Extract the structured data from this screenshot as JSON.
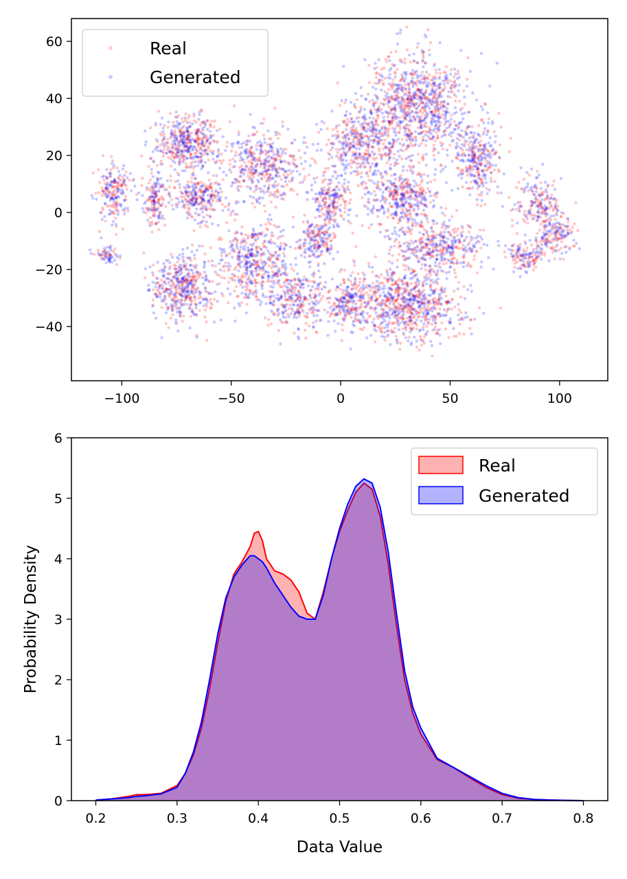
{
  "chart_data": [
    {
      "type": "scatter",
      "title": "",
      "xlabel": "",
      "ylabel": "",
      "xlim": [
        -123,
        122
      ],
      "ylim": [
        -59,
        68
      ],
      "xticks": [
        -100,
        -50,
        0,
        50,
        100
      ],
      "xtick_labels": [
        "−100",
        "−50",
        "0",
        "50",
        "100"
      ],
      "yticks": [
        -40,
        -20,
        0,
        20,
        40,
        60
      ],
      "ytick_labels": [
        "−40",
        "−20",
        "0",
        "20",
        "40",
        "60"
      ],
      "grid": false,
      "legend_position": "top-left",
      "series": [
        {
          "name": "Real",
          "color": "#ff0000",
          "alpha": 0.2
        },
        {
          "name": "Generated",
          "color": "#0000ff",
          "alpha": 0.2
        }
      ],
      "clusters": [
        {
          "cx": 35,
          "cy": 38,
          "rx": 26,
          "ry": 20,
          "n": 900
        },
        {
          "cx": 10,
          "cy": 24,
          "rx": 20,
          "ry": 15,
          "n": 450
        },
        {
          "cx": 28,
          "cy": 5,
          "rx": 18,
          "ry": 12,
          "n": 400
        },
        {
          "cx": 62,
          "cy": 18,
          "rx": 12,
          "ry": 14,
          "n": 300
        },
        {
          "cx": -70,
          "cy": 24,
          "rx": 15,
          "ry": 11,
          "n": 450
        },
        {
          "cx": -65,
          "cy": 5,
          "rx": 12,
          "ry": 8,
          "n": 250
        },
        {
          "cx": -35,
          "cy": 16,
          "rx": 20,
          "ry": 14,
          "n": 450
        },
        {
          "cx": -5,
          "cy": 4,
          "rx": 10,
          "ry": 10,
          "n": 200
        },
        {
          "cx": -103,
          "cy": 7,
          "rx": 8,
          "ry": 12,
          "n": 200
        },
        {
          "cx": -85,
          "cy": 5,
          "rx": 6,
          "ry": 12,
          "n": 150
        },
        {
          "cx": -107,
          "cy": -15,
          "rx": 6,
          "ry": 3,
          "n": 60
        },
        {
          "cx": -72,
          "cy": -26,
          "rx": 16,
          "ry": 13,
          "n": 450
        },
        {
          "cx": -40,
          "cy": -18,
          "rx": 18,
          "ry": 16,
          "n": 450
        },
        {
          "cx": -10,
          "cy": -10,
          "rx": 10,
          "ry": 8,
          "n": 180
        },
        {
          "cx": -20,
          "cy": -30,
          "rx": 16,
          "ry": 12,
          "n": 300
        },
        {
          "cx": 30,
          "cy": -32,
          "rx": 28,
          "ry": 14,
          "n": 800
        },
        {
          "cx": 45,
          "cy": -12,
          "rx": 22,
          "ry": 10,
          "n": 400
        },
        {
          "cx": 3,
          "cy": -32,
          "rx": 10,
          "ry": 12,
          "n": 200
        },
        {
          "cx": 90,
          "cy": 3,
          "rx": 14,
          "ry": 10,
          "n": 200
        },
        {
          "cx": 98,
          "cy": -8,
          "rx": 10,
          "ry": 8,
          "n": 150
        },
        {
          "cx": 85,
          "cy": -15,
          "rx": 8,
          "ry": 6,
          "n": 120
        }
      ]
    },
    {
      "type": "area",
      "title": "",
      "xlabel": "Data Value",
      "ylabel": "Probability Density",
      "xlim": [
        0.17,
        0.83
      ],
      "ylim": [
        0,
        6
      ],
      "xticks": [
        0.2,
        0.3,
        0.4,
        0.5,
        0.6,
        0.7,
        0.8
      ],
      "xtick_labels": [
        "0.2",
        "0.3",
        "0.4",
        "0.5",
        "0.6",
        "0.7",
        "0.8"
      ],
      "yticks": [
        0,
        1,
        2,
        3,
        4,
        5,
        6
      ],
      "ytick_labels": [
        "0",
        "1",
        "2",
        "3",
        "4",
        "5",
        "6"
      ],
      "grid": false,
      "legend_position": "top-right",
      "series": [
        {
          "name": "Real",
          "color": "#ff0000",
          "fill": "#ff0000",
          "fill_alpha": 0.3,
          "x": [
            0.2,
            0.22,
            0.24,
            0.25,
            0.26,
            0.28,
            0.3,
            0.31,
            0.32,
            0.33,
            0.34,
            0.35,
            0.36,
            0.37,
            0.38,
            0.39,
            0.395,
            0.4,
            0.405,
            0.41,
            0.42,
            0.43,
            0.44,
            0.45,
            0.46,
            0.47,
            0.48,
            0.49,
            0.5,
            0.51,
            0.52,
            0.53,
            0.54,
            0.55,
            0.56,
            0.57,
            0.58,
            0.59,
            0.6,
            0.62,
            0.64,
            0.66,
            0.68,
            0.7,
            0.72,
            0.74,
            0.76,
            0.78,
            0.8
          ],
          "y": [
            0.01,
            0.03,
            0.07,
            0.1,
            0.1,
            0.12,
            0.25,
            0.45,
            0.75,
            1.2,
            1.85,
            2.6,
            3.3,
            3.75,
            3.95,
            4.2,
            4.42,
            4.45,
            4.3,
            4.0,
            3.8,
            3.75,
            3.65,
            3.45,
            3.1,
            3.0,
            3.45,
            4.0,
            4.45,
            4.8,
            5.1,
            5.25,
            5.15,
            4.7,
            3.9,
            2.9,
            2.0,
            1.45,
            1.1,
            0.68,
            0.55,
            0.38,
            0.22,
            0.1,
            0.04,
            0.02,
            0.01,
            0.005,
            0.0
          ]
        },
        {
          "name": "Generated",
          "color": "#0000ff",
          "fill": "#0000ff",
          "fill_alpha": 0.3,
          "x": [
            0.2,
            0.22,
            0.24,
            0.25,
            0.26,
            0.28,
            0.3,
            0.31,
            0.32,
            0.33,
            0.34,
            0.35,
            0.36,
            0.37,
            0.38,
            0.39,
            0.395,
            0.4,
            0.405,
            0.41,
            0.42,
            0.43,
            0.44,
            0.45,
            0.46,
            0.47,
            0.48,
            0.49,
            0.5,
            0.51,
            0.52,
            0.53,
            0.54,
            0.55,
            0.56,
            0.57,
            0.58,
            0.59,
            0.6,
            0.62,
            0.64,
            0.66,
            0.68,
            0.7,
            0.72,
            0.74,
            0.76,
            0.78,
            0.8
          ],
          "y": [
            0.01,
            0.03,
            0.05,
            0.07,
            0.08,
            0.11,
            0.22,
            0.45,
            0.8,
            1.3,
            2.0,
            2.75,
            3.35,
            3.7,
            3.9,
            4.05,
            4.05,
            4.0,
            3.95,
            3.85,
            3.6,
            3.4,
            3.2,
            3.05,
            3.0,
            3.0,
            3.4,
            4.0,
            4.5,
            4.9,
            5.2,
            5.32,
            5.25,
            4.85,
            4.1,
            3.1,
            2.15,
            1.55,
            1.2,
            0.7,
            0.55,
            0.4,
            0.25,
            0.12,
            0.05,
            0.02,
            0.01,
            0.005,
            0.0
          ]
        }
      ]
    }
  ]
}
